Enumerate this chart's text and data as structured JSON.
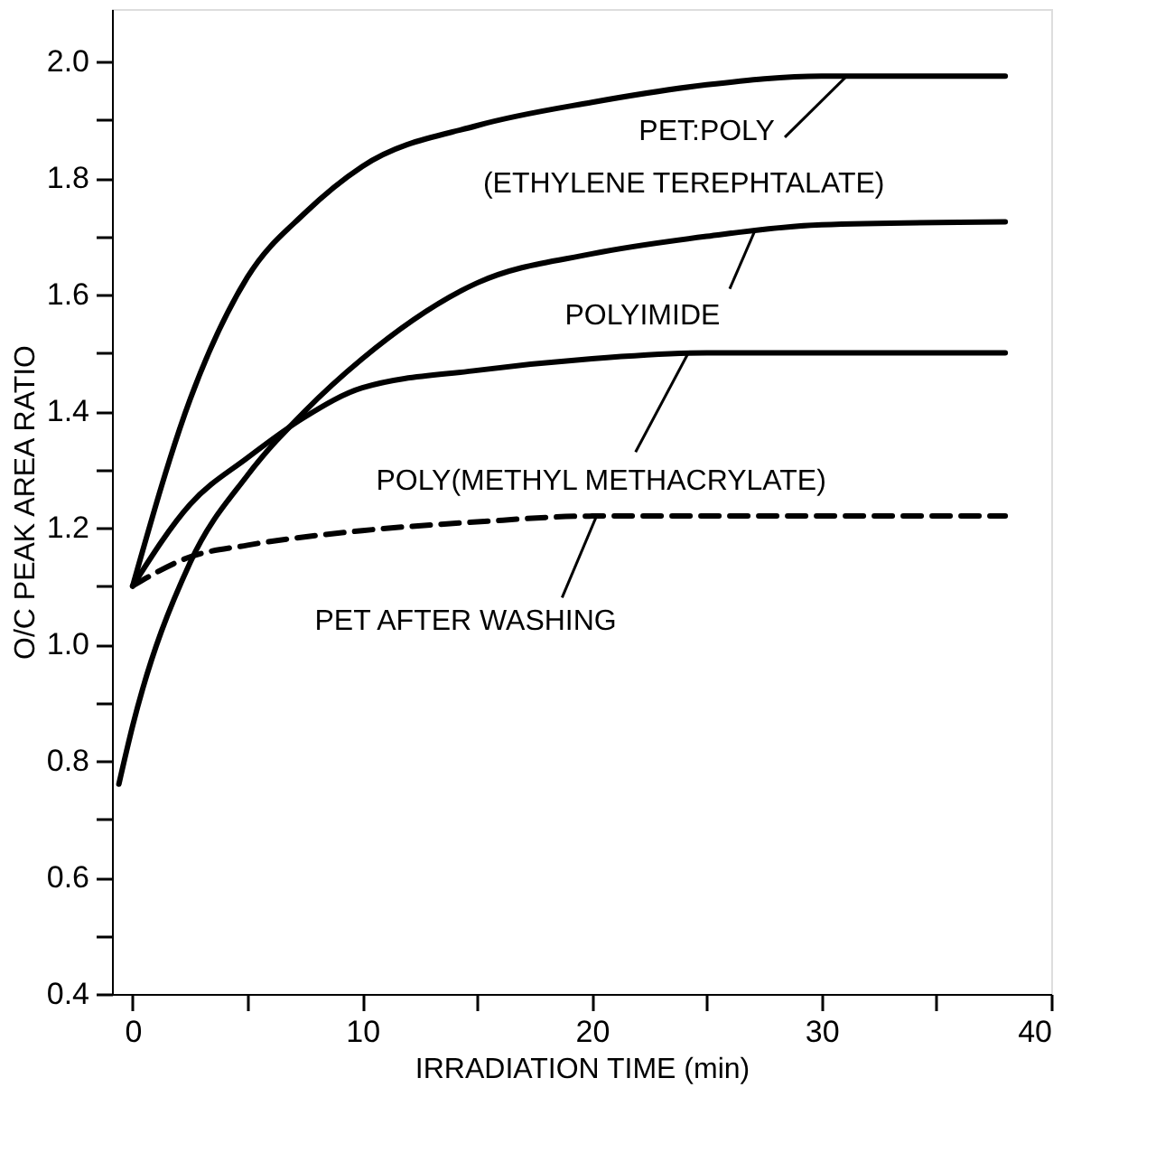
{
  "chart_data": {
    "type": "line",
    "xlabel": "IRRADIATION TIME (min)",
    "ylabel": "O/C PEAK AREA RATIO",
    "series": [
      {
        "color": "#000000",
        "line_style": "solid",
        "x": [
          0,
          2.5,
          5,
          7.5,
          10,
          15,
          20,
          25,
          30,
          38
        ],
        "values": [
          1.1,
          1.42,
          1.63,
          1.74,
          1.82,
          1.89,
          1.93,
          1.96,
          1.975,
          1.975
        ]
      },
      {
        "color": "#000000",
        "line_style": "solid",
        "x": [
          -0.6,
          0,
          2.5,
          5,
          7.5,
          10,
          15,
          20,
          25,
          30,
          38
        ],
        "values": [
          0.76,
          0.86,
          1.14,
          1.29,
          1.4,
          1.49,
          1.62,
          1.67,
          1.7,
          1.72,
          1.725
        ]
      },
      {
        "color": "#000000",
        "line_style": "solid",
        "x": [
          0,
          2.5,
          5,
          7.5,
          10,
          15,
          20,
          25,
          38
        ],
        "values": [
          1.1,
          1.24,
          1.32,
          1.39,
          1.44,
          1.47,
          1.49,
          1.5,
          1.5
        ]
      },
      {
        "color": "#000000",
        "line_style": "dashed",
        "x": [
          0,
          2.5,
          5,
          10,
          15,
          20,
          38
        ],
        "values": [
          1.1,
          1.15,
          1.17,
          1.195,
          1.21,
          1.22,
          1.22
        ]
      }
    ],
    "annotations": [
      {
        "text": "PET:POLY",
        "x": 31.1,
        "y": 1.975
      },
      "(ETHYLENE TEREPHTALATE)",
      {
        "text": "POLYIMIDE",
        "x": 27.1,
        "y": 1.71
      },
      {
        "text": "POLY(METHYL METHACRYLATE)",
        "x": 24.2,
        "y": 1.5
      },
      {
        "text": "PET AFTER WASHING",
        "x": 20.2,
        "y": 1.22
      }
    ],
    "xlim": [
      -0.9,
      40
    ],
    "xticks": [
      0,
      {
        "value": 5,
        "label": null
      },
      10,
      {
        "value": 15,
        "label": null
      },
      20,
      {
        "value": 25,
        "label": null
      },
      30,
      {
        "value": 35,
        "label": null
      },
      40
    ],
    "ylim": [
      0.4,
      2.09
    ],
    "yticks": [
      0.4,
      {
        "value": 0.5,
        "label": null
      },
      0.6,
      {
        "value": 0.7,
        "label": null
      },
      0.8,
      {
        "value": 0.9,
        "label": null
      },
      {
        "value": 1.0,
        "label": "1.0"
      },
      {
        "value": 1.1,
        "label": null
      },
      1.2,
      {
        "value": 1.3,
        "label": null
      },
      1.4,
      {
        "value": 1.5,
        "label": null
      },
      1.6,
      {
        "value": 1.7,
        "label": null
      },
      1.8,
      {
        "value": 1.9,
        "label": null
      },
      {
        "value": 2.0,
        "label": "2.0"
      }
    ],
    "grid": false,
    "marker": "none"
  }
}
